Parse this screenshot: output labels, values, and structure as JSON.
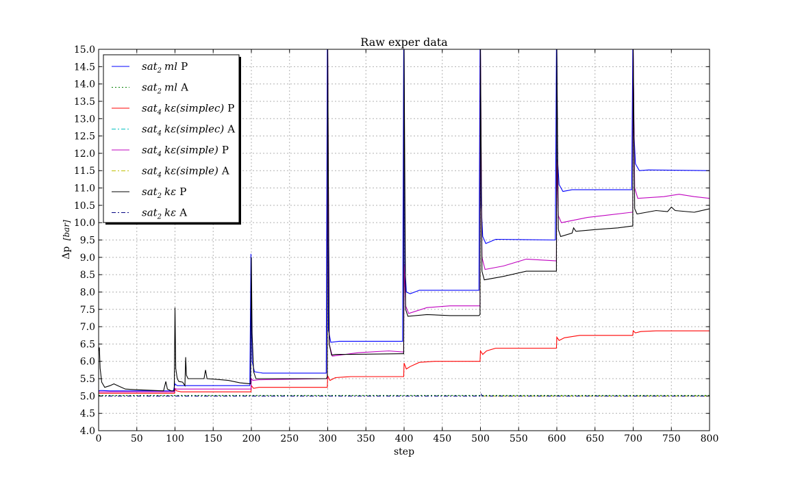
{
  "chart_data": {
    "type": "line",
    "title": "Raw exper data",
    "xlabel": "step",
    "ylabel_main": "Δp",
    "ylabel_unit": "[bar]",
    "xlim": [
      0,
      800
    ],
    "ylim": [
      4.0,
      15.0
    ],
    "xticks": [
      0,
      50,
      100,
      150,
      200,
      250,
      300,
      350,
      400,
      450,
      500,
      550,
      600,
      650,
      700,
      750,
      800
    ],
    "yticks": [
      4.0,
      4.5,
      5.0,
      5.5,
      6.0,
      6.5,
      7.0,
      7.5,
      8.0,
      8.5,
      9.0,
      9.5,
      10.0,
      10.5,
      11.0,
      11.5,
      12.0,
      12.5,
      13.0,
      13.5,
      14.0,
      14.5,
      15.0
    ],
    "grid": true,
    "legend_position": "top-left",
    "series": [
      {
        "name": "sat_2 ml P",
        "legend": {
          "base": "sat",
          "sub": "2",
          "rest": "ml",
          "suffix": "P"
        },
        "color": "#0000ff",
        "dash": "solid",
        "x": [
          0,
          2,
          5,
          15,
          40,
          98,
          99.5,
          100,
          101,
          103,
          110,
          150,
          198,
          199.5,
          200,
          201,
          204,
          215,
          298,
          299.5,
          300,
          301,
          304,
          315,
          398,
          399.5,
          400,
          401,
          403,
          408,
          420,
          498,
          499.5,
          500,
          501,
          503,
          507,
          520,
          598,
          599.5,
          600,
          601,
          603,
          608,
          620,
          698,
          699.5,
          700,
          701,
          703,
          708,
          720,
          800
        ],
        "y": [
          5.15,
          5.16,
          5.16,
          5.15,
          5.15,
          5.15,
          5.3,
          5.35,
          5.33,
          5.3,
          5.3,
          5.3,
          5.3,
          9.1,
          7.5,
          6.0,
          5.7,
          5.66,
          5.66,
          15.0,
          15.0,
          6.9,
          6.55,
          6.58,
          6.58,
          15.0,
          15.0,
          8.8,
          8.0,
          7.95,
          8.05,
          8.05,
          15.0,
          15.0,
          10.5,
          9.6,
          9.4,
          9.52,
          9.5,
          15.0,
          15.0,
          11.8,
          11.1,
          10.9,
          10.95,
          10.95,
          15.0,
          15.0,
          12.6,
          11.7,
          11.5,
          11.52,
          11.5
        ]
      },
      {
        "name": "sat_2 ml A",
        "legend": {
          "base": "sat",
          "sub": "2",
          "rest": "ml",
          "suffix": "A"
        },
        "color": "#008000",
        "dash": "dotted",
        "x": [
          0,
          800
        ],
        "y": [
          5.02,
          5.02
        ]
      },
      {
        "name": "sat_4 kε(simplec) P",
        "legend": {
          "base": "sat",
          "sub": "4",
          "rest": "kε(simplec)",
          "suffix": "P"
        },
        "color": "#ff0000",
        "dash": "solid",
        "x": [
          0,
          3,
          10,
          98,
          99.5,
          100,
          102,
          108,
          150,
          198,
          199.5,
          200,
          203,
          210,
          298,
          299.5,
          300,
          303,
          310,
          330,
          398,
          399.5,
          400,
          403,
          408,
          420,
          440,
          498,
          499.5,
          500,
          503,
          508,
          520,
          540,
          598,
          599.5,
          600,
          603,
          610,
          630,
          650,
          698,
          699.5,
          700,
          703,
          710,
          730,
          760,
          800
        ],
        "y": [
          5.08,
          5.08,
          5.08,
          5.08,
          5.08,
          5.2,
          5.15,
          5.12,
          5.12,
          5.12,
          5.12,
          5.3,
          5.22,
          5.25,
          5.25,
          5.25,
          5.58,
          5.45,
          5.53,
          5.56,
          5.56,
          5.56,
          5.95,
          5.78,
          5.85,
          5.97,
          6.0,
          6.0,
          6.0,
          6.3,
          6.2,
          6.3,
          6.38,
          6.38,
          6.38,
          6.38,
          6.7,
          6.6,
          6.68,
          6.75,
          6.75,
          6.75,
          6.75,
          6.88,
          6.82,
          6.86,
          6.88,
          6.88,
          6.88
        ]
      },
      {
        "name": "sat_4 kε(simplec) A",
        "legend": {
          "base": "sat",
          "sub": "4",
          "rest": "kε(simplec)",
          "suffix": "A"
        },
        "color": "#00bfbf",
        "dash": "dashdot",
        "x": [
          0,
          800
        ],
        "y": [
          5.0,
          5.0
        ]
      },
      {
        "name": "sat_4 kε(simple) P",
        "legend": {
          "base": "sat",
          "sub": "4",
          "rest": "kε(simple)",
          "suffix": "P"
        },
        "color": "#bf00bf",
        "dash": "solid",
        "x": [
          0,
          3,
          10,
          98,
          99.5,
          100,
          102,
          110,
          198,
          199.5,
          200,
          202,
          210,
          298,
          299.5,
          300,
          302,
          306,
          340,
          380,
          398,
          399.5,
          400,
          402,
          406,
          430,
          460,
          498,
          499.5,
          500,
          502,
          506,
          530,
          560,
          598,
          599.5,
          600,
          602,
          606,
          640,
          698,
          699.5,
          700,
          702,
          706,
          740,
          760,
          780,
          800
        ],
        "y": [
          5.12,
          5.12,
          5.12,
          5.12,
          5.12,
          5.22,
          5.2,
          5.2,
          5.2,
          5.2,
          5.5,
          5.45,
          5.47,
          5.5,
          5.5,
          15.0,
          6.5,
          6.15,
          6.25,
          6.3,
          6.27,
          6.27,
          8.8,
          7.6,
          7.38,
          7.55,
          7.6,
          7.6,
          7.6,
          15.0,
          9.0,
          8.65,
          8.75,
          8.95,
          8.9,
          8.9,
          11.8,
          10.2,
          10.0,
          10.15,
          10.3,
          10.3,
          15.0,
          11.0,
          10.7,
          10.75,
          10.82,
          10.75,
          10.7
        ]
      },
      {
        "name": "sat_4 kε(simple) A",
        "legend": {
          "base": "sat",
          "sub": "4",
          "rest": "kε(simple)",
          "suffix": "A"
        },
        "color": "#bfbf00",
        "dash": "dashdot",
        "x": [
          0,
          800
        ],
        "y": [
          5.0,
          5.0
        ]
      },
      {
        "name": "sat_2 kε P",
        "legend": {
          "base": "sat",
          "sub": "2",
          "rest": "kε",
          "suffix": "P"
        },
        "color": "#000000",
        "dash": "solid",
        "x": [
          0,
          1,
          2,
          4,
          8,
          15,
          20,
          25,
          35,
          50,
          85,
          88,
          90,
          95,
          99,
          100,
          101,
          103,
          105,
          110,
          113,
          114,
          115,
          117,
          125,
          138,
          140,
          142,
          155,
          170,
          185,
          199,
          200,
          201,
          203,
          206,
          220,
          298,
          299.5,
          300,
          302,
          305,
          310,
          330,
          398,
          399.5,
          400,
          402,
          405,
          430,
          460,
          498,
          499.5,
          500,
          502,
          505,
          530,
          560,
          598,
          599.5,
          600,
          602,
          605,
          620,
          622,
          625,
          650,
          680,
          698,
          699.5,
          700,
          702,
          705,
          730,
          745,
          750,
          755,
          780,
          800
        ],
        "y": [
          6.3,
          6.4,
          5.8,
          5.4,
          5.25,
          5.3,
          5.35,
          5.3,
          5.2,
          5.18,
          5.15,
          5.42,
          5.2,
          5.15,
          5.15,
          7.55,
          5.8,
          5.5,
          5.42,
          5.4,
          5.3,
          6.12,
          5.6,
          5.5,
          5.5,
          5.5,
          5.75,
          5.5,
          5.48,
          5.45,
          5.38,
          5.35,
          9.0,
          6.8,
          5.7,
          5.5,
          5.5,
          5.5,
          5.55,
          15.0,
          6.5,
          6.18,
          6.2,
          6.2,
          6.22,
          6.22,
          15.0,
          7.5,
          7.3,
          7.35,
          7.32,
          7.32,
          7.35,
          15.0,
          8.6,
          8.35,
          8.45,
          8.6,
          8.6,
          8.6,
          15.0,
          9.8,
          9.6,
          9.7,
          9.85,
          9.75,
          9.8,
          9.85,
          9.9,
          9.9,
          15.0,
          10.4,
          10.25,
          10.35,
          10.32,
          10.45,
          10.35,
          10.3,
          10.4
        ]
      },
      {
        "name": "sat_2 kε A",
        "legend": {
          "base": "sat",
          "sub": "2",
          "rest": "kε",
          "suffix": "A"
        },
        "color": "#000080",
        "dash": "dashdot",
        "x": [
          0,
          500,
          501,
          502,
          800
        ],
        "y": [
          5.0,
          5.0,
          5.05,
          5.0,
          5.0
        ]
      }
    ]
  }
}
